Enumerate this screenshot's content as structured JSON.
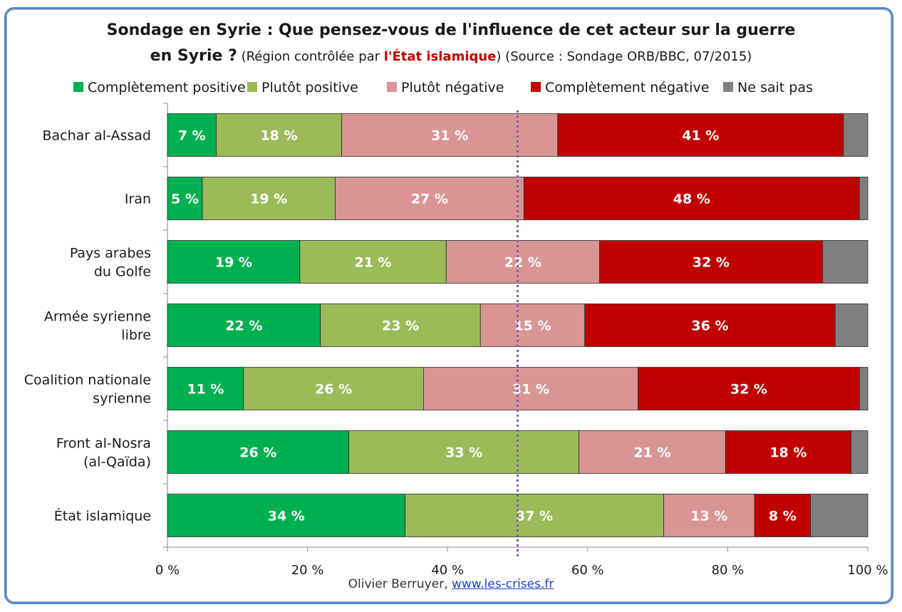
{
  "title_line1": "Sondage en Syrie : Que pensez-vous de l'influence de cet acteur sur la guerre",
  "title_line2_bold": "en Syrie ?",
  "title_line2_pre": " (Région contrôlée par ",
  "title_line2_red": "l'État islamique",
  "title_line2_post": ") (Source : Sondage ORB/BBC, 07/2015)",
  "credit": {
    "author": "Olivier Berruyer,",
    "link": "www.les-crises.fr"
  },
  "colors": {
    "positive_full": "#00b050",
    "positive": "#9bbb59",
    "negative": "#d99594",
    "negative_full": "#c00000",
    "unknown": "#7f7f7f",
    "midline": "#7f5fa8"
  },
  "chart_data": {
    "type": "bar",
    "orientation": "horizontal",
    "stacked": "percent",
    "categories": [
      "Bachar al-Assad",
      "Iran",
      "Pays arabes\ndu Golfe",
      "Armée syrienne\nlibre",
      "Coalition nationale\nsyrienne",
      "Front al-Nosra\n(al-Qaïda)",
      "État islamique"
    ],
    "series": [
      {
        "name": "Complètement positive",
        "values": [
          7,
          5,
          19,
          22,
          11,
          26,
          34
        ],
        "labels": [
          "7 %",
          "5 %",
          "19 %",
          "22 %",
          "11 %",
          "26 %",
          "34 %"
        ]
      },
      {
        "name": "Plutôt positive",
        "values": [
          18,
          19,
          21,
          23,
          26,
          33,
          37
        ],
        "labels": [
          "18 %",
          "19 %",
          "21 %",
          "23 %",
          "26 %",
          "33 %",
          "37 %"
        ]
      },
      {
        "name": "Plutôt négative",
        "values": [
          31,
          27,
          22,
          15,
          31,
          21,
          13
        ],
        "labels": [
          "31 %",
          "27 %",
          "22 %",
          "15 %",
          "31 %",
          "21 %",
          "13 %"
        ]
      },
      {
        "name": "Complètement négative",
        "values": [
          41,
          48,
          32,
          36,
          32,
          18,
          8
        ],
        "labels": [
          "41 %",
          "48 %",
          "32 %",
          "36 %",
          "32 %",
          "18 %",
          "8 %"
        ]
      },
      {
        "name": "Ne sait pas",
        "values": [
          3.5,
          1.2,
          6.5,
          4.7,
          1.2,
          2.4,
          8.2
        ],
        "labels": [
          "",
          "",
          "",
          "",
          "",
          "",
          ""
        ]
      }
    ],
    "x_ticks": [
      "0 %",
      "20 %",
      "40 %",
      "60 %",
      "80 %",
      "100 %"
    ],
    "xlim": [
      0,
      100
    ],
    "reference_line": 50,
    "legend": "top",
    "grid": false
  }
}
